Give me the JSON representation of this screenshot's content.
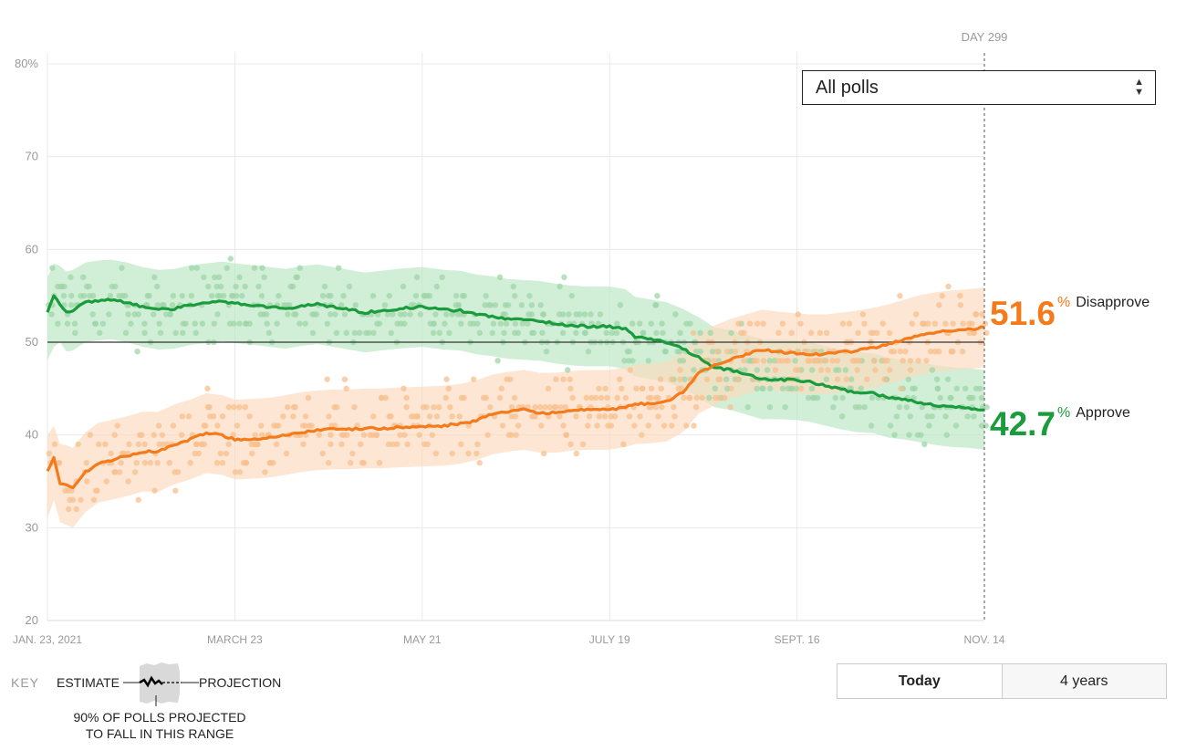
{
  "colors": {
    "approve": "#1a9b3c",
    "approve_band": "#b8e6c2",
    "approve_dot": "#9fd6a8",
    "disapprove": "#f47a1a",
    "disapprove_band": "#fcd9bd",
    "disapprove_dot": "#f7c08f",
    "grid": "#e9e9e9",
    "axis_text": "#999999"
  },
  "filter": {
    "selected": "All polls"
  },
  "day_marker": "DAY 299",
  "readouts": {
    "disapprove": {
      "value": "51.6",
      "pct": "%",
      "label": "Disapprove"
    },
    "approve": {
      "value": "42.7",
      "pct": "%",
      "label": "Approve"
    }
  },
  "key": {
    "label": "KEY",
    "estimate": "ESTIMATE",
    "projection": "PROJECTION",
    "note": "90% OF POLLS PROJECTED TO FALL IN THIS RANGE"
  },
  "range_toggle": {
    "options": [
      "Today",
      "4 years"
    ],
    "active": "Today"
  },
  "chart_data": {
    "type": "line",
    "title": "",
    "xlabel": "",
    "ylabel": "",
    "ylim": [
      20,
      80
    ],
    "yticks": [
      20,
      30,
      40,
      50,
      60,
      70,
      80
    ],
    "ytick_labels": [
      "20",
      "30",
      "40",
      "50",
      "60",
      "70",
      "80%"
    ],
    "reference_line": 50,
    "x_range_days": [
      0,
      295
    ],
    "xticks": [
      {
        "day": 0,
        "label": "JAN. 23, 2021"
      },
      {
        "day": 59,
        "label": "MARCH 23"
      },
      {
        "day": 118,
        "label": "MAY 21"
      },
      {
        "day": 177,
        "label": "JULY 19"
      },
      {
        "day": 236,
        "label": "SEPT. 16"
      },
      {
        "day": 295,
        "label": "NOV. 14"
      }
    ],
    "grid": true,
    "series": [
      {
        "name": "Approve",
        "color": "#1a9b3c",
        "x": [
          0,
          2,
          4,
          6,
          8,
          12,
          16,
          20,
          25,
          30,
          35,
          40,
          45,
          50,
          55,
          59,
          65,
          70,
          75,
          80,
          85,
          90,
          95,
          100,
          105,
          110,
          118,
          125,
          130,
          135,
          140,
          145,
          150,
          155,
          160,
          165,
          170,
          177,
          182,
          185,
          190,
          195,
          200,
          205,
          210,
          215,
          220,
          225,
          230,
          236,
          240,
          245,
          250,
          255,
          260,
          265,
          270,
          275,
          280,
          285,
          290,
          295
        ],
        "y": [
          53.1,
          55.0,
          54.1,
          53.3,
          53.4,
          54.3,
          54.5,
          54.6,
          54.3,
          53.8,
          53.5,
          53.6,
          54.0,
          54.2,
          54.4,
          54.2,
          54.0,
          53.8,
          53.6,
          53.9,
          54.1,
          53.8,
          53.5,
          53.2,
          53.4,
          53.6,
          53.8,
          53.5,
          53.4,
          53.0,
          52.8,
          52.5,
          52.4,
          52.3,
          52.0,
          51.8,
          51.7,
          51.7,
          51.4,
          50.6,
          50.3,
          50.0,
          49.3,
          48.4,
          47.3,
          47.0,
          46.5,
          46.0,
          46.0,
          45.9,
          45.7,
          45.3,
          44.9,
          44.6,
          44.5,
          44.0,
          43.8,
          43.5,
          43.2,
          43.0,
          42.9,
          42.7
        ],
        "band_upper": [
          57.0,
          58.5,
          58.2,
          57.6,
          57.8,
          58.6,
          58.8,
          58.9,
          58.6,
          58.1,
          57.8,
          57.9,
          58.3,
          58.5,
          58.7,
          58.5,
          58.3,
          58.1,
          57.9,
          58.2,
          58.4,
          58.1,
          57.8,
          57.5,
          57.7,
          57.9,
          58.1,
          57.8,
          57.7,
          57.3,
          57.1,
          56.8,
          56.7,
          56.6,
          56.3,
          56.1,
          56.0,
          56.0,
          55.7,
          54.9,
          54.6,
          54.3,
          53.6,
          52.7,
          51.6,
          51.3,
          50.8,
          50.3,
          50.3,
          50.2,
          50.0,
          49.6,
          49.2,
          48.9,
          48.8,
          48.3,
          48.1,
          47.8,
          47.5,
          47.3,
          47.2,
          47.0
        ],
        "band_lower": [
          48.0,
          49.5,
          50.0,
          49.0,
          49.1,
          50.0,
          50.2,
          50.3,
          50.0,
          49.5,
          49.2,
          49.3,
          49.7,
          49.9,
          50.1,
          49.9,
          49.7,
          49.5,
          49.3,
          49.6,
          49.8,
          49.5,
          49.2,
          48.9,
          49.1,
          49.3,
          49.5,
          49.2,
          49.1,
          48.7,
          48.5,
          48.2,
          48.1,
          48.0,
          47.7,
          47.5,
          47.4,
          47.4,
          47.1,
          46.3,
          46.0,
          45.7,
          45.0,
          44.1,
          43.0,
          42.7,
          42.2,
          41.7,
          41.7,
          41.6,
          41.4,
          41.0,
          40.6,
          40.3,
          40.2,
          39.7,
          39.5,
          39.2,
          38.9,
          38.7,
          38.6,
          38.4
        ]
      },
      {
        "name": "Disapprove",
        "color": "#f47a1a",
        "x": [
          0,
          2,
          4,
          6,
          8,
          12,
          16,
          20,
          25,
          30,
          35,
          40,
          45,
          50,
          55,
          59,
          65,
          70,
          75,
          80,
          85,
          90,
          95,
          100,
          105,
          110,
          118,
          125,
          130,
          135,
          140,
          145,
          150,
          155,
          160,
          165,
          170,
          177,
          182,
          185,
          190,
          195,
          200,
          205,
          210,
          215,
          220,
          225,
          230,
          236,
          240,
          245,
          250,
          255,
          260,
          265,
          270,
          275,
          280,
          285,
          290,
          295
        ],
        "y": [
          36.0,
          37.6,
          34.8,
          34.6,
          34.3,
          36.0,
          37.0,
          37.3,
          37.7,
          38.2,
          38.2,
          39.0,
          39.5,
          40.2,
          40.0,
          39.5,
          39.6,
          39.7,
          40.0,
          40.3,
          40.5,
          40.6,
          40.6,
          40.7,
          40.7,
          40.8,
          40.9,
          41.0,
          41.2,
          41.6,
          42.2,
          42.5,
          42.7,
          42.4,
          42.4,
          42.6,
          42.7,
          42.7,
          43.0,
          43.3,
          43.4,
          43.6,
          44.6,
          46.6,
          47.5,
          48.2,
          48.7,
          49.2,
          49.0,
          48.8,
          48.7,
          48.7,
          48.9,
          49.1,
          49.4,
          49.8,
          50.3,
          50.8,
          51.1,
          51.3,
          51.4,
          51.6
        ],
        "band_upper": [
          40.0,
          41.0,
          39.0,
          38.9,
          38.6,
          40.3,
          41.3,
          41.6,
          42.0,
          42.5,
          42.5,
          43.3,
          43.8,
          44.5,
          44.3,
          43.8,
          43.9,
          44.0,
          44.3,
          44.6,
          44.8,
          44.9,
          44.9,
          45.0,
          45.0,
          45.1,
          45.2,
          45.3,
          45.5,
          45.9,
          46.5,
          46.8,
          47.0,
          46.7,
          46.7,
          46.9,
          47.0,
          47.0,
          47.3,
          47.6,
          47.7,
          47.9,
          48.9,
          50.9,
          51.8,
          52.5,
          53.0,
          53.5,
          53.3,
          53.1,
          53.0,
          53.0,
          53.2,
          53.4,
          53.7,
          54.1,
          54.6,
          55.1,
          55.4,
          55.6,
          55.7,
          55.9
        ],
        "band_lower": [
          31.0,
          33.0,
          30.6,
          30.3,
          30.0,
          31.7,
          32.7,
          33.0,
          33.4,
          33.9,
          33.9,
          34.7,
          35.2,
          35.9,
          35.7,
          35.2,
          35.3,
          35.4,
          35.7,
          36.0,
          36.2,
          36.3,
          36.3,
          36.4,
          36.4,
          36.5,
          36.6,
          36.7,
          36.9,
          37.3,
          37.9,
          38.2,
          38.4,
          38.1,
          38.1,
          38.3,
          38.4,
          38.4,
          38.7,
          39.0,
          39.1,
          39.3,
          40.3,
          42.3,
          43.2,
          43.9,
          44.4,
          44.9,
          44.7,
          44.5,
          44.4,
          44.4,
          44.6,
          44.8,
          45.1,
          45.5,
          46.0,
          46.5,
          46.8,
          47.0,
          47.1,
          47.3
        ]
      }
    ],
    "poll_scatter_per_day": 3,
    "poll_scatter_spread": 3.4
  }
}
